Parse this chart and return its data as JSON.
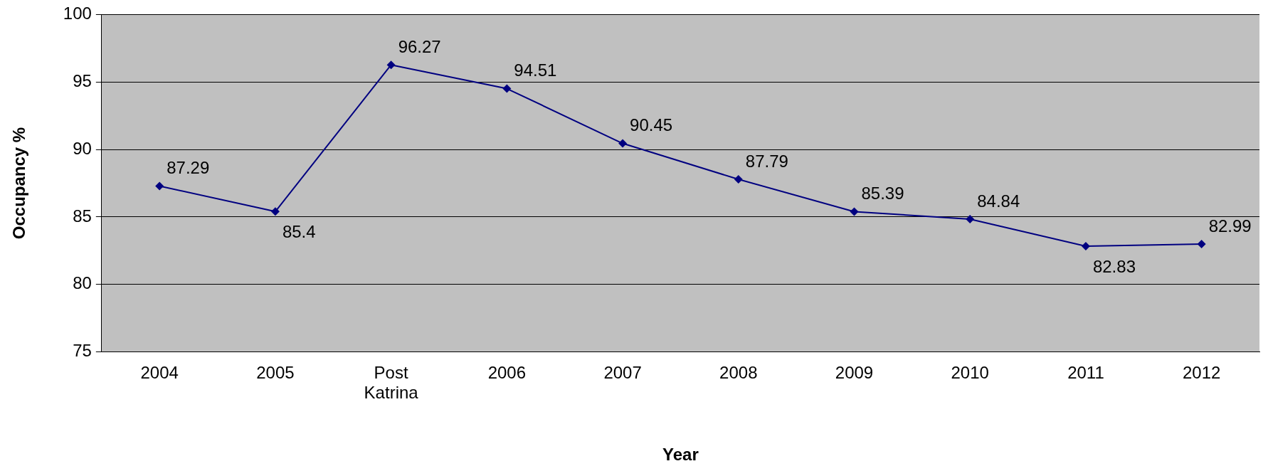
{
  "chart_data": {
    "type": "line",
    "xlabel": "Year",
    "ylabel": "Occupancy %",
    "categories": [
      "2004",
      "2005",
      "Post Katrina",
      "2006",
      "2007",
      "2008",
      "2009",
      "2010",
      "2011",
      "2012"
    ],
    "series": [
      {
        "color": "#000080",
        "values": [
          87.29,
          85.4,
          96.27,
          94.51,
          90.45,
          87.79,
          85.39,
          84.84,
          82.83,
          82.99
        ]
      }
    ],
    "value_labels": [
      "87.29",
      "85.4",
      "96.27",
      "94.51",
      "90.45",
      "87.79",
      "85.39",
      "84.84",
      "82.83",
      "82.99"
    ],
    "ylim": [
      75,
      100
    ],
    "yticks": [
      75,
      80,
      85,
      90,
      95,
      100
    ],
    "grid": "y",
    "legend": false,
    "marker": "diamond",
    "line_style": "solid"
  }
}
